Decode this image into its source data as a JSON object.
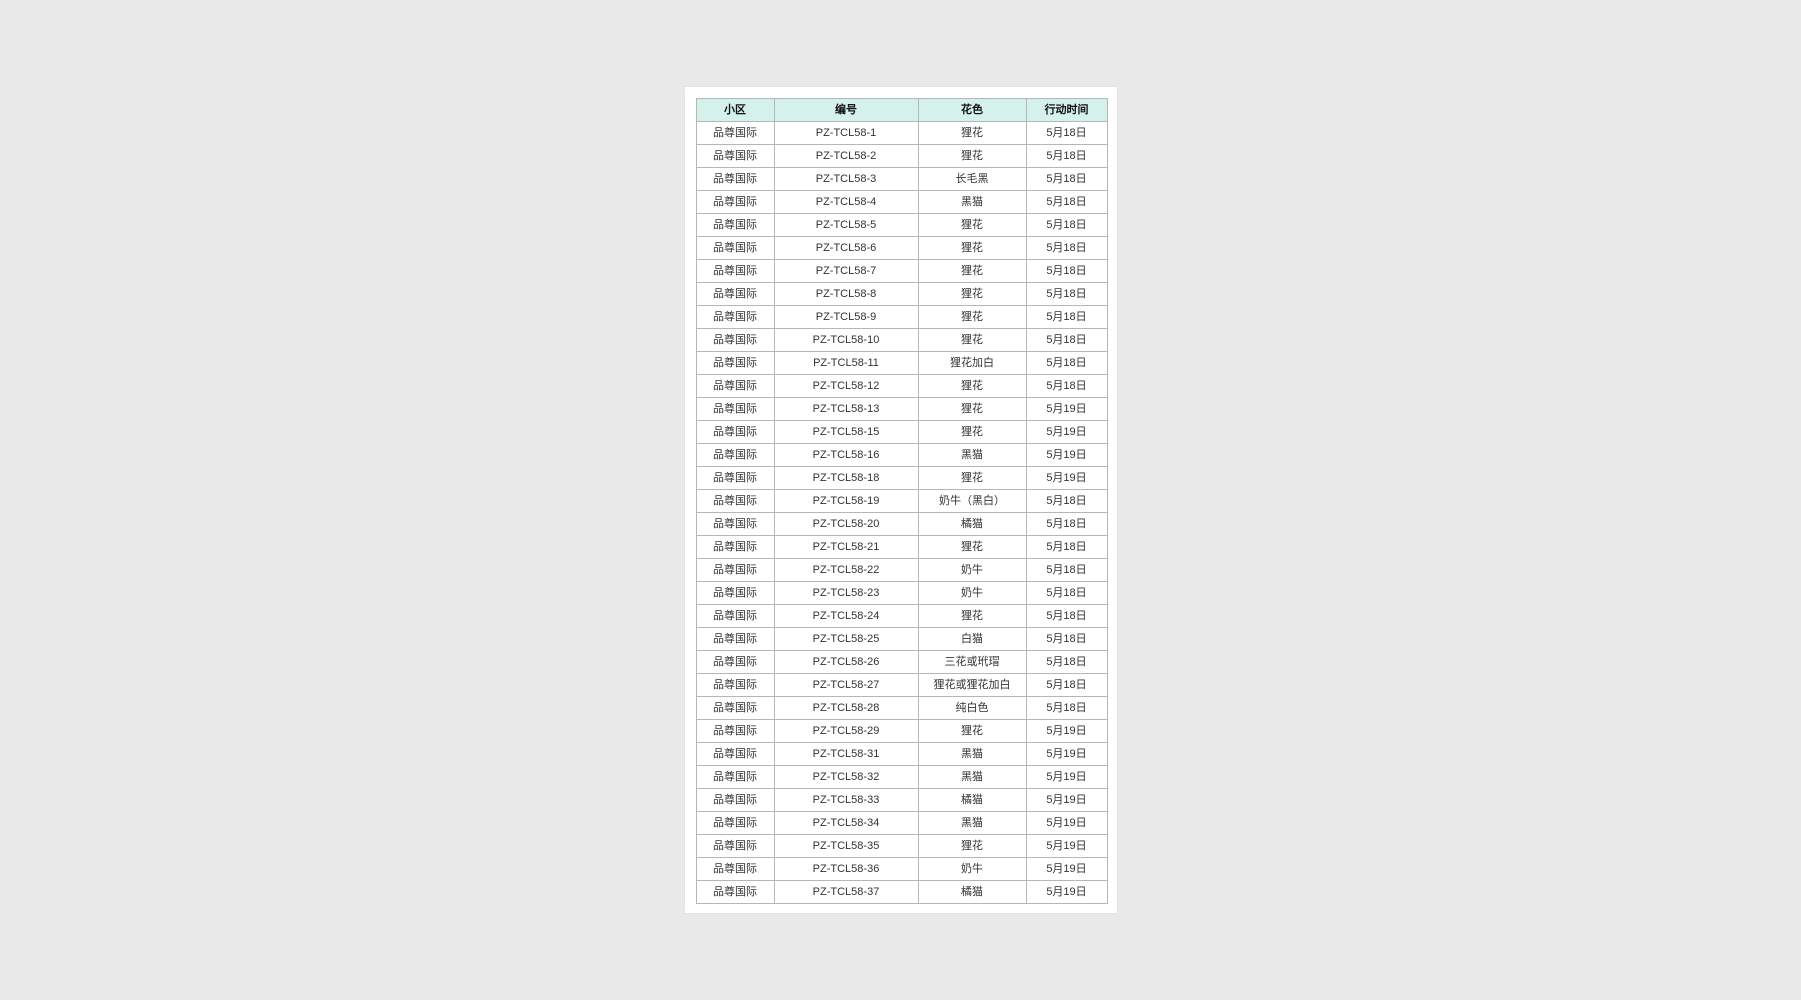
{
  "page": {
    "background_color": "#e9e9e9",
    "panel_color": "#ffffff"
  },
  "table": {
    "header_bg": "#d5f1ec",
    "border_color": "#b6b6b6",
    "columns": {
      "community": "小区",
      "code": "编号",
      "color": "花色",
      "date": "行动时间"
    },
    "rows": [
      {
        "community": "品尊国际",
        "code": "PZ-TCL58-1",
        "color": "狸花",
        "date": "5月18日"
      },
      {
        "community": "品尊国际",
        "code": "PZ-TCL58-2",
        "color": "狸花",
        "date": "5月18日"
      },
      {
        "community": "品尊国际",
        "code": "PZ-TCL58-3",
        "color": "长毛黑",
        "date": "5月18日"
      },
      {
        "community": "品尊国际",
        "code": "PZ-TCL58-4",
        "color": "黑猫",
        "date": "5月18日"
      },
      {
        "community": "品尊国际",
        "code": "PZ-TCL58-5",
        "color": "狸花",
        "date": "5月18日"
      },
      {
        "community": "品尊国际",
        "code": "PZ-TCL58-6",
        "color": "狸花",
        "date": "5月18日"
      },
      {
        "community": "品尊国际",
        "code": "PZ-TCL58-7",
        "color": "狸花",
        "date": "5月18日"
      },
      {
        "community": "品尊国际",
        "code": "PZ-TCL58-8",
        "color": "狸花",
        "date": "5月18日"
      },
      {
        "community": "品尊国际",
        "code": "PZ-TCL58-9",
        "color": "狸花",
        "date": "5月18日"
      },
      {
        "community": "品尊国际",
        "code": "PZ-TCL58-10",
        "color": "狸花",
        "date": "5月18日"
      },
      {
        "community": "品尊国际",
        "code": "PZ-TCL58-11",
        "color": "狸花加白",
        "date": "5月18日"
      },
      {
        "community": "品尊国际",
        "code": "PZ-TCL58-12",
        "color": "狸花",
        "date": "5月18日"
      },
      {
        "community": "品尊国际",
        "code": "PZ-TCL58-13",
        "color": "狸花",
        "date": "5月19日"
      },
      {
        "community": "品尊国际",
        "code": "PZ-TCL58-15",
        "color": "狸花",
        "date": "5月19日"
      },
      {
        "community": "品尊国际",
        "code": "PZ-TCL58-16",
        "color": "黑猫",
        "date": "5月19日"
      },
      {
        "community": "品尊国际",
        "code": "PZ-TCL58-18",
        "color": "狸花",
        "date": "5月19日"
      },
      {
        "community": "品尊国际",
        "code": "PZ-TCL58-19",
        "color": "奶牛（黑白）",
        "date": "5月18日"
      },
      {
        "community": "品尊国际",
        "code": "PZ-TCL58-20",
        "color": "橘猫",
        "date": "5月18日"
      },
      {
        "community": "品尊国际",
        "code": "PZ-TCL58-21",
        "color": "狸花",
        "date": "5月18日"
      },
      {
        "community": "品尊国际",
        "code": "PZ-TCL58-22",
        "color": "奶牛",
        "date": "5月18日"
      },
      {
        "community": "品尊国际",
        "code": "PZ-TCL58-23",
        "color": "奶牛",
        "date": "5月18日"
      },
      {
        "community": "品尊国际",
        "code": "PZ-TCL58-24",
        "color": "狸花",
        "date": "5月18日"
      },
      {
        "community": "品尊国际",
        "code": "PZ-TCL58-25",
        "color": "白猫",
        "date": "5月18日"
      },
      {
        "community": "品尊国际",
        "code": "PZ-TCL58-26",
        "color": "三花或玳瑁",
        "date": "5月18日"
      },
      {
        "community": "品尊国际",
        "code": "PZ-TCL58-27",
        "color": "狸花或狸花加白",
        "date": "5月18日"
      },
      {
        "community": "品尊国际",
        "code": "PZ-TCL58-28",
        "color": "纯白色",
        "date": "5月18日"
      },
      {
        "community": "品尊国际",
        "code": "PZ-TCL58-29",
        "color": "狸花",
        "date": "5月19日"
      },
      {
        "community": "品尊国际",
        "code": "PZ-TCL58-31",
        "color": "黑猫",
        "date": "5月19日"
      },
      {
        "community": "品尊国际",
        "code": "PZ-TCL58-32",
        "color": "黑猫",
        "date": "5月19日"
      },
      {
        "community": "品尊国际",
        "code": "PZ-TCL58-33",
        "color": "橘猫",
        "date": "5月19日"
      },
      {
        "community": "品尊国际",
        "code": "PZ-TCL58-34",
        "color": "黑猫",
        "date": "5月19日"
      },
      {
        "community": "品尊国际",
        "code": "PZ-TCL58-35",
        "color": "狸花",
        "date": "5月19日"
      },
      {
        "community": "品尊国际",
        "code": "PZ-TCL58-36",
        "color": "奶牛",
        "date": "5月19日"
      },
      {
        "community": "品尊国际",
        "code": "PZ-TCL58-37",
        "color": "橘猫",
        "date": "5月19日"
      }
    ]
  }
}
